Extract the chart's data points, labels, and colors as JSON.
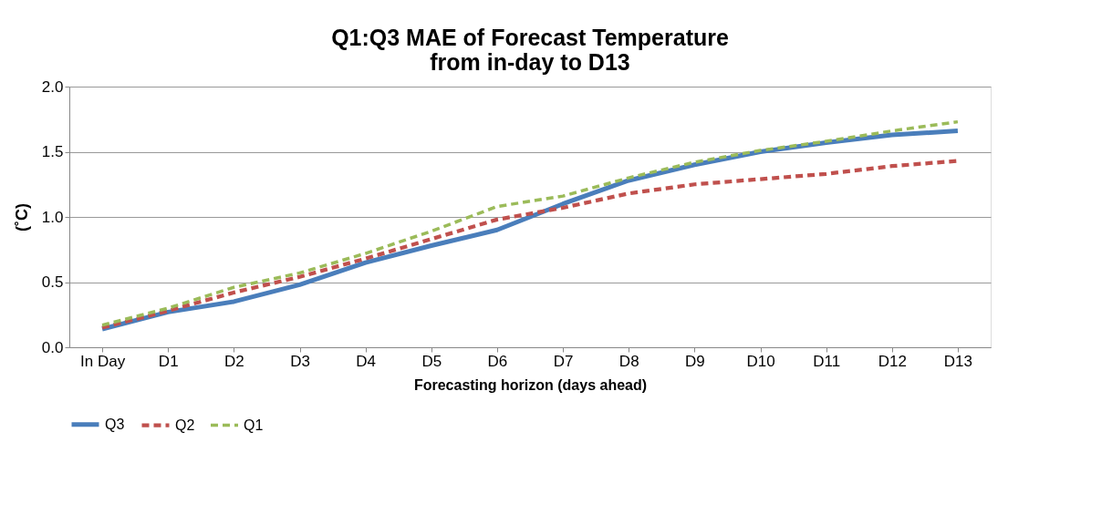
{
  "chart_data": {
    "type": "line",
    "title": "Q1:Q3 MAE of Forecast Temperature\nfrom in-day to D13",
    "xlabel": "Forecasting horizon (days ahead)",
    "ylabel": "(˚C)",
    "categories": [
      "In Day",
      "D1",
      "D2",
      "D3",
      "D4",
      "D5",
      "D6",
      "D7",
      "D8",
      "D9",
      "D10",
      "D11",
      "D12",
      "D13"
    ],
    "series": [
      {
        "name": "Q3",
        "color": "#4a7ebb",
        "line_style": "solid",
        "values": [
          0.14,
          0.27,
          0.35,
          0.48,
          0.65,
          0.78,
          0.9,
          1.1,
          1.28,
          1.4,
          1.5,
          1.57,
          1.63,
          1.66
        ]
      },
      {
        "name": "Q2",
        "color": "#c0504d",
        "line_style": "dashed",
        "values": [
          0.15,
          0.28,
          0.42,
          0.54,
          0.68,
          0.83,
          0.98,
          1.07,
          1.18,
          1.25,
          1.29,
          1.33,
          1.39,
          1.43
        ]
      },
      {
        "name": "Q1",
        "color": "#9bbb59",
        "line_style": "dashed",
        "values": [
          0.17,
          0.3,
          0.46,
          0.57,
          0.72,
          0.89,
          1.08,
          1.16,
          1.3,
          1.42,
          1.51,
          1.58,
          1.66,
          1.73
        ]
      }
    ],
    "ylim": [
      0,
      2
    ],
    "yticks": [
      {
        "value": 0,
        "label": "0.0"
      },
      0.5,
      {
        "value": 1,
        "label": "1.0"
      },
      1.5,
      {
        "value": 2,
        "label": "2.0"
      }
    ],
    "grid": "y",
    "legend": "bottom",
    "marker": "none"
  }
}
